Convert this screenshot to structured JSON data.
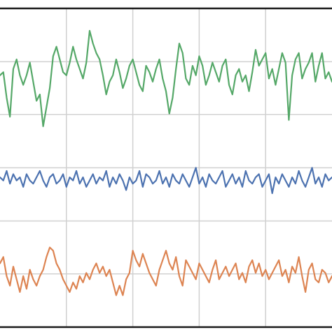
{
  "chart_data": {
    "type": "line",
    "title": "",
    "xlabel": "",
    "ylabel": "",
    "xlim": [
      0,
      100
    ],
    "ylim": [
      0,
      100
    ],
    "grid": true,
    "x_gridlines": [
      20,
      40,
      60,
      80
    ],
    "y_gridlines": [
      0,
      16.7,
      33.3,
      50,
      66.7,
      83.3,
      100
    ],
    "series": [
      {
        "color": "#55a868",
        "x": [
          0,
          1,
          2,
          3,
          4,
          5,
          6,
          7,
          8,
          9,
          10,
          11,
          12,
          13,
          14,
          15,
          16,
          17,
          18,
          19,
          20,
          21,
          22,
          23,
          24,
          25,
          26,
          27,
          28,
          29,
          30,
          31,
          32,
          33,
          34,
          35,
          36,
          37,
          38,
          39,
          40,
          41,
          42,
          43,
          44,
          45,
          46,
          47,
          48,
          49,
          50,
          51,
          52,
          53,
          54,
          55,
          56,
          57,
          58,
          59,
          60,
          61,
          62,
          63,
          64,
          65,
          66,
          67,
          68,
          69,
          70,
          71,
          72,
          73,
          74,
          75,
          76,
          77,
          78,
          79,
          80,
          81,
          82,
          83,
          84,
          85,
          86,
          87,
          88,
          89,
          90,
          91,
          92,
          93,
          94,
          95,
          96,
          97,
          98,
          99,
          100
        ],
        "y": [
          79,
          80,
          72,
          66,
          81,
          84,
          79,
          76,
          79,
          83,
          77,
          71,
          73,
          63,
          69,
          75,
          85,
          88,
          84,
          80,
          79,
          83,
          88,
          84,
          81,
          78,
          83,
          93,
          89,
          86,
          84,
          79,
          73,
          77,
          79,
          84,
          80,
          75,
          78,
          82,
          84,
          80,
          76,
          74,
          82,
          80,
          77,
          81,
          84,
          78,
          74,
          67,
          72,
          81,
          89,
          86,
          78,
          76,
          82,
          79,
          85,
          82,
          76,
          79,
          83,
          80,
          77,
          82,
          84,
          76,
          73,
          79,
          81,
          77,
          79,
          74,
          80,
          87,
          82,
          84,
          86,
          78,
          81,
          76,
          81,
          86,
          83,
          65,
          79,
          84,
          86,
          78,
          81,
          83,
          86,
          77,
          82,
          86,
          78,
          80,
          77
        ]
      },
      {
        "color": "#4c72b0",
        "x": [
          0,
          1,
          2,
          3,
          4,
          5,
          6,
          7,
          8,
          9,
          10,
          11,
          12,
          13,
          14,
          15,
          16,
          17,
          18,
          19,
          20,
          21,
          22,
          23,
          24,
          25,
          26,
          27,
          28,
          29,
          30,
          31,
          32,
          33,
          34,
          35,
          36,
          37,
          38,
          39,
          40,
          41,
          42,
          43,
          44,
          45,
          46,
          47,
          48,
          49,
          50,
          51,
          52,
          53,
          54,
          55,
          56,
          57,
          58,
          59,
          60,
          61,
          62,
          63,
          64,
          65,
          66,
          67,
          68,
          69,
          70,
          71,
          72,
          73,
          74,
          75,
          76,
          77,
          78,
          79,
          80,
          81,
          82,
          83,
          84,
          85,
          86,
          87,
          88,
          89,
          90,
          91,
          92,
          93,
          94,
          95,
          96,
          97,
          98,
          99,
          100
        ],
        "y": [
          47,
          46,
          49,
          45,
          48,
          46,
          47,
          44,
          48,
          46,
          45,
          47,
          49,
          46,
          44,
          47,
          48,
          45,
          46,
          48,
          44,
          47,
          46,
          49,
          45,
          47,
          44,
          46,
          48,
          45,
          47,
          46,
          49,
          44,
          47,
          45,
          48,
          46,
          43,
          47,
          45,
          46,
          49,
          44,
          48,
          47,
          45,
          46,
          49,
          45,
          47,
          44,
          48,
          46,
          45,
          48,
          46,
          44,
          47,
          50,
          45,
          47,
          44,
          48,
          46,
          45,
          47,
          49,
          44,
          46,
          48,
          45,
          47,
          44,
          49,
          46,
          45,
          47,
          48,
          44,
          46,
          48,
          42,
          47,
          45,
          48,
          46,
          44,
          47,
          45,
          49,
          46,
          44,
          47,
          50,
          45,
          47,
          44,
          48,
          46,
          47
        ]
      },
      {
        "color": "#dd8452",
        "x": [
          0,
          1,
          2,
          3,
          4,
          5,
          6,
          7,
          8,
          9,
          10,
          11,
          12,
          13,
          14,
          15,
          16,
          17,
          18,
          19,
          20,
          21,
          22,
          23,
          24,
          25,
          26,
          27,
          28,
          29,
          30,
          31,
          32,
          33,
          34,
          35,
          36,
          37,
          38,
          39,
          40,
          41,
          42,
          43,
          44,
          45,
          46,
          47,
          48,
          49,
          50,
          51,
          52,
          53,
          54,
          55,
          56,
          57,
          58,
          59,
          60,
          61,
          62,
          63,
          64,
          65,
          66,
          67,
          68,
          69,
          70,
          71,
          72,
          73,
          74,
          75,
          76,
          77,
          78,
          79,
          80,
          81,
          82,
          83,
          84,
          85,
          86,
          87,
          88,
          89,
          90,
          91,
          92,
          93,
          94,
          95,
          96,
          97,
          98,
          99,
          100
        ],
        "y": [
          20,
          22,
          16,
          13,
          19,
          15,
          11,
          16,
          12,
          18,
          15,
          13,
          16,
          18,
          22,
          25,
          24,
          20,
          18,
          15,
          13,
          11,
          14,
          12,
          16,
          14,
          17,
          15,
          18,
          20,
          17,
          19,
          16,
          18,
          14,
          10,
          13,
          10,
          15,
          17,
          24,
          21,
          19,
          23,
          20,
          17,
          15,
          13,
          18,
          21,
          24,
          20,
          18,
          22,
          16,
          13,
          21,
          19,
          17,
          15,
          20,
          18,
          16,
          14,
          18,
          21,
          15,
          17,
          19,
          16,
          18,
          20,
          15,
          17,
          14,
          19,
          21,
          17,
          20,
          16,
          18,
          15,
          17,
          19,
          21,
          16,
          18,
          14,
          19,
          17,
          22,
          16,
          11,
          18,
          20,
          15,
          14,
          18,
          17,
          14,
          16
        ]
      }
    ]
  }
}
